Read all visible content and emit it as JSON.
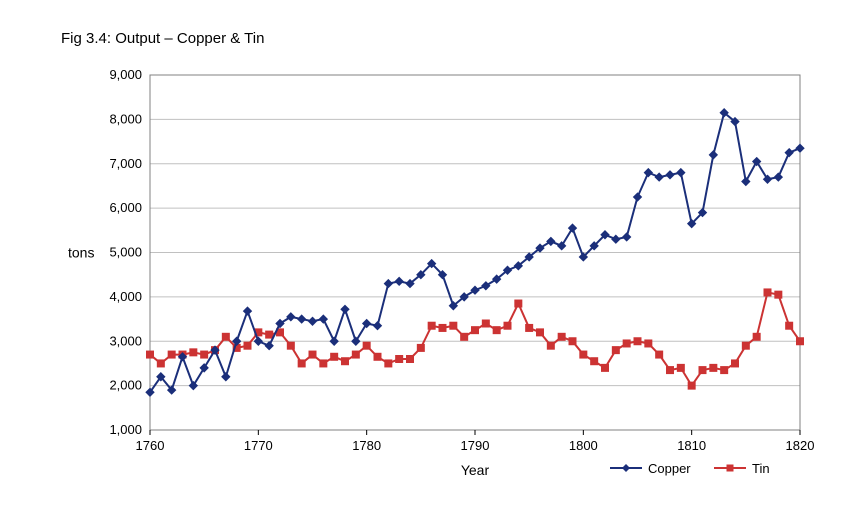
{
  "title": "Fig 3.4: Output – Copper & Tin",
  "chart": {
    "type": "line",
    "background_color": "#ffffff",
    "plot_border_color": "#808080",
    "grid_color": "#c0c0c0",
    "label_color": "#000000",
    "label_fontsize": 13,
    "axis_label_fontsize": 14,
    "title_fontsize": 15,
    "x": {
      "label": "Year",
      "min": 1760,
      "max": 1820,
      "tick_step": 10,
      "ticks": [
        1760,
        1770,
        1780,
        1790,
        1800,
        1810,
        1820
      ]
    },
    "y": {
      "label": "tons",
      "min": 1000,
      "max": 9000,
      "tick_step": 1000,
      "ticks": [
        1000,
        2000,
        3000,
        4000,
        5000,
        6000,
        7000,
        8000,
        9000
      ],
      "tick_labels": [
        "1,000",
        "2,000",
        "3,000",
        "4,000",
        "5,000",
        "6,000",
        "7,000",
        "8,000",
        "9,000"
      ]
    },
    "years": [
      1760,
      1761,
      1762,
      1763,
      1764,
      1765,
      1766,
      1767,
      1768,
      1769,
      1770,
      1771,
      1772,
      1773,
      1774,
      1775,
      1776,
      1777,
      1778,
      1779,
      1780,
      1781,
      1782,
      1783,
      1784,
      1785,
      1786,
      1787,
      1788,
      1789,
      1790,
      1791,
      1792,
      1793,
      1794,
      1795,
      1796,
      1797,
      1798,
      1799,
      1800,
      1801,
      1802,
      1803,
      1804,
      1805,
      1806,
      1807,
      1808,
      1809,
      1810,
      1811,
      1812,
      1813,
      1814,
      1815,
      1816,
      1817,
      1818,
      1819,
      1820
    ],
    "series": {
      "copper": {
        "label": "Copper",
        "color": "#1b2f7a",
        "line_width": 2,
        "marker": "diamond",
        "marker_size": 8,
        "values": [
          1850,
          2200,
          1900,
          2650,
          2000,
          2400,
          2800,
          2200,
          3000,
          3680,
          3000,
          2900,
          3400,
          3550,
          3500,
          3450,
          3500,
          3000,
          3720,
          3000,
          3400,
          3350,
          4300,
          4350,
          4300,
          4500,
          4750,
          4500,
          3800,
          4000,
          4150,
          4250,
          4400,
          4600,
          4700,
          4900,
          5100,
          5250,
          5150,
          5550,
          4900,
          5150,
          5400,
          5300,
          5350,
          6250,
          6800,
          6700,
          6750,
          6800,
          5650,
          5900,
          7200,
          8150,
          7950,
          6600,
          7050,
          6650,
          6700,
          7250,
          7350
        ]
      },
      "tin": {
        "label": "Tin",
        "color": "#cc3333",
        "line_width": 2,
        "marker": "square",
        "marker_size": 7,
        "values": [
          2700,
          2500,
          2700,
          2700,
          2750,
          2700,
          2800,
          3100,
          2850,
          2900,
          3200,
          3150,
          3200,
          2900,
          2500,
          2700,
          2500,
          2650,
          2550,
          2700,
          2900,
          2650,
          2500,
          2600,
          2600,
          2850,
          3350,
          3300,
          3350,
          3100,
          3250,
          3400,
          3250,
          3350,
          3850,
          3300,
          3200,
          2900,
          3100,
          3000,
          2700,
          2550,
          2400,
          2800,
          2950,
          3000,
          2950,
          2700,
          2350,
          2400,
          2000,
          2350,
          2400,
          2350,
          2500,
          2900,
          3100,
          4100,
          4050,
          3350,
          3000
        ]
      }
    },
    "legend": {
      "items": [
        "copper",
        "tin"
      ],
      "position": "bottom-right"
    }
  }
}
